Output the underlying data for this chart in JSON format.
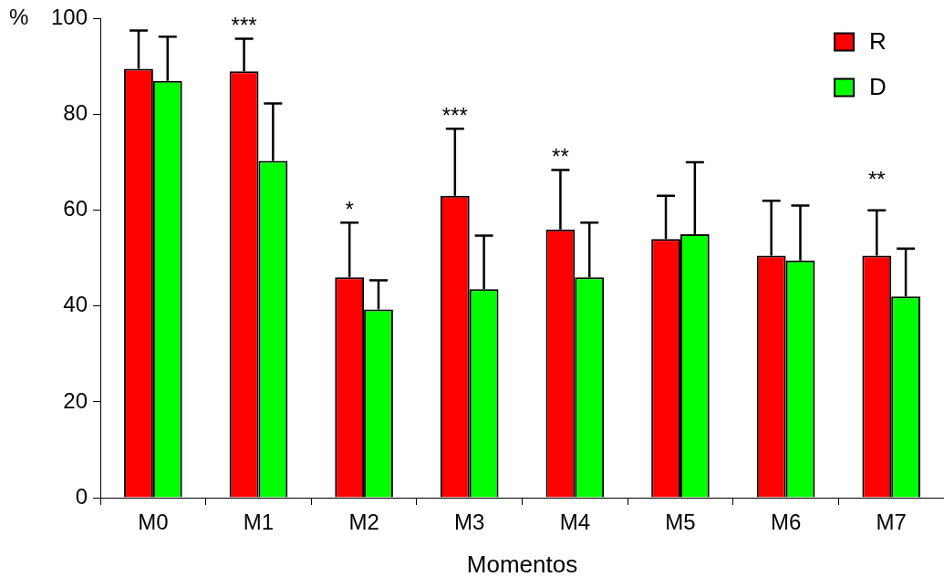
{
  "chart_data": {
    "type": "bar",
    "xlabel": "Momentos",
    "ylabel": "%",
    "categories": [
      "M0",
      "M1",
      "M2",
      "M3",
      "M4",
      "M5",
      "M6",
      "M7"
    ],
    "series": [
      {
        "name": "R",
        "color": "#ff0000",
        "values": [
          89.5,
          89,
          46,
          63,
          56,
          54,
          50.5,
          50.5
        ],
        "errors": [
          [
            89.5,
            97.5
          ],
          [
            89,
            95.8
          ],
          [
            46,
            57.4
          ],
          [
            63,
            77
          ],
          [
            56,
            68.4
          ],
          [
            54,
            63
          ],
          [
            50.5,
            62
          ],
          [
            50.5,
            60
          ]
        ],
        "value_labels": [
          null,
          "***",
          "*",
          "***",
          "**",
          null,
          null,
          "**"
        ]
      },
      {
        "name": "D",
        "color": "#00ff00",
        "values": [
          87,
          70.3,
          39.3,
          43.5,
          46,
          55,
          49.5,
          42
        ],
        "errors": [
          [
            87,
            96.2
          ],
          [
            70.3,
            82.3
          ],
          [
            39.3,
            45.4
          ],
          [
            43.5,
            54.7
          ],
          [
            46,
            57.4
          ],
          [
            55,
            70
          ],
          [
            49.5,
            61
          ],
          [
            42,
            52
          ]
        ]
      }
    ],
    "ylim": [
      0,
      100
    ],
    "yticks": [
      0,
      20,
      40,
      60,
      80,
      100
    ],
    "grid": false,
    "legend": "top right"
  }
}
